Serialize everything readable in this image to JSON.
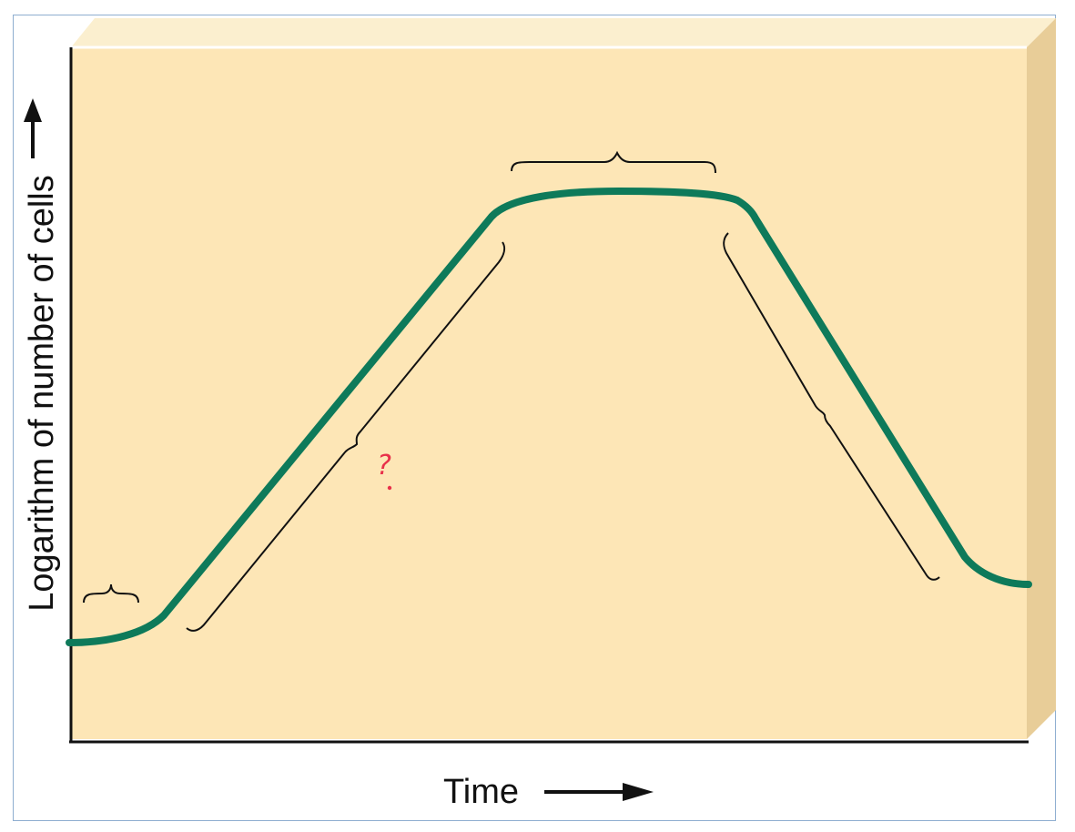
{
  "diagram": {
    "ylabel": "Logarithm of number of cells",
    "xlabel": "Time",
    "annotation": "?",
    "colors": {
      "panel": "#fde6b6",
      "panel_top": "#fbefcf",
      "panel_side": "#e8cd98",
      "curve": "#0e7a5a",
      "brace": "#111111",
      "annotation": "#e8304a",
      "frame": "#8eaed0"
    }
  }
}
